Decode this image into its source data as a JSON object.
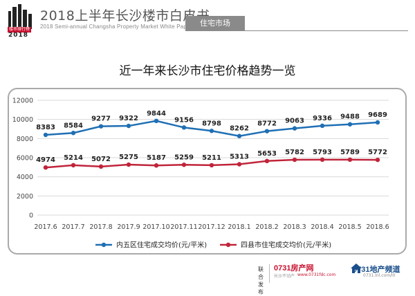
{
  "header": {
    "title": "2018上半年长沙楼市白皮书",
    "subtitle": "2018 Semi-annual Changsha Property Market White Paper",
    "badge": "住宅市场",
    "logo_year": "2018",
    "logo_tag": "楼市排行榜"
  },
  "footer": {
    "joint_label": "联合发布",
    "brand1": "0731房产网",
    "brand1_url": "www.0731fdc.com",
    "brand1_sub": "长沙不动产",
    "brand2": "0731地产频道",
    "brand2_sub": "0731.lnl.com/l0"
  },
  "colors": {
    "blue": "#1f6fb4",
    "red": "#c0243a",
    "grid": "#d9d9d9"
  },
  "chart_data": {
    "type": "line",
    "title": "近一年来长沙市住宅价格趋势一览",
    "categories": [
      "2017.6",
      "2017.7",
      "2017.8",
      "2017.9",
      "2017.10",
      "2017.11",
      "2017.12",
      "2018.1",
      "2018.2",
      "2018.3",
      "2018.4",
      "2018.5",
      "2018.6"
    ],
    "series": [
      {
        "name": "内五区住宅成交均价(元/平米)",
        "color": "#1f6fb4",
        "values": [
          8383,
          8584,
          9277,
          9322,
          9844,
          9156,
          8798,
          8262,
          8772,
          9063,
          9336,
          9488,
          9689
        ]
      },
      {
        "name": "四县市住宅成交均价(元/平米)",
        "color": "#c0243a",
        "values": [
          4974,
          5214,
          5072,
          5275,
          5187,
          5259,
          5211,
          5313,
          5653,
          5782,
          5793,
          5789,
          5772
        ]
      }
    ],
    "ylim": [
      0,
      12000
    ],
    "yticks": [
      0,
      2000,
      4000,
      6000,
      8000,
      10000,
      12000
    ],
    "grid": true,
    "legend": "bottom-center",
    "xlabel": "",
    "ylabel": ""
  }
}
